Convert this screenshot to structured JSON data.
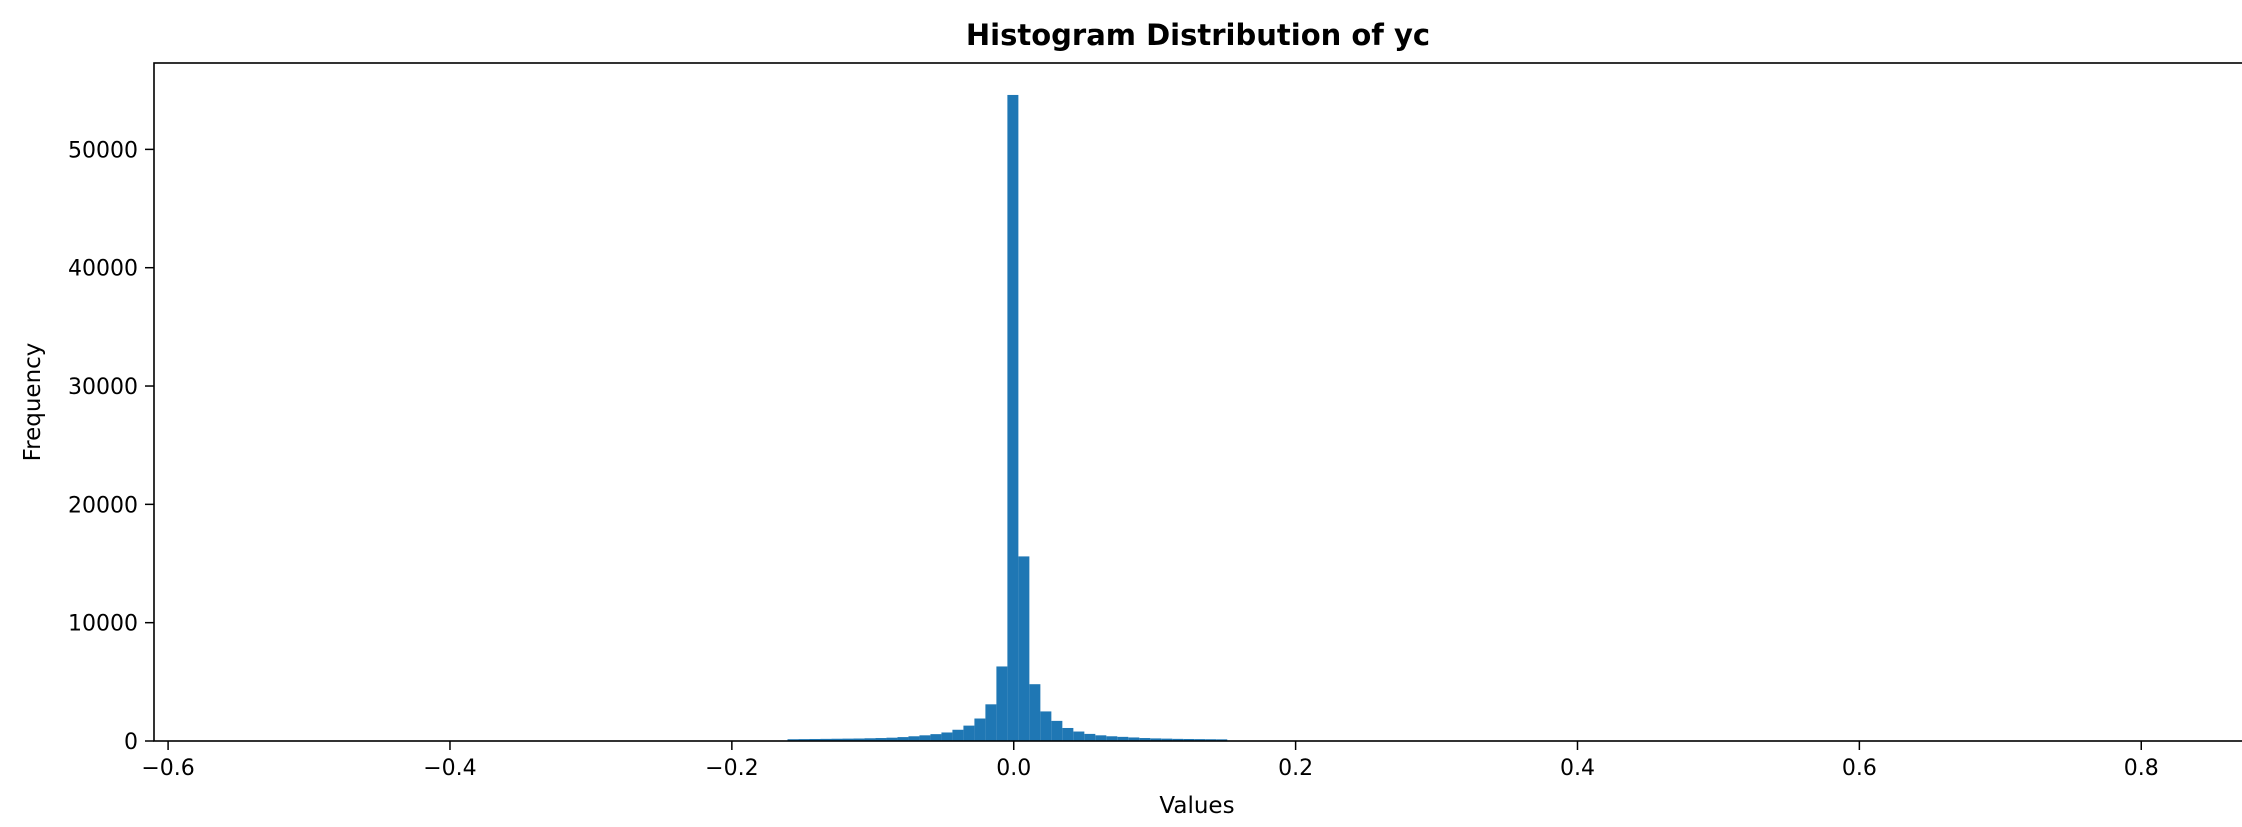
{
  "chart_data": {
    "type": "bar",
    "title": "Histogram Distribution of yc",
    "xlabel": "Values",
    "ylabel": "Frequency",
    "xlim": [
      -0.61,
      0.88
    ],
    "ylim": [
      0,
      57300
    ],
    "x_ticks": [
      -0.6,
      -0.4,
      -0.2,
      0.0,
      0.2,
      0.4,
      0.6,
      0.8
    ],
    "x_tick_labels": [
      "−0.6",
      "−0.4",
      "−0.2",
      "0.0",
      "0.2",
      "0.4",
      "0.6",
      "0.8"
    ],
    "y_ticks": [
      0,
      10000,
      20000,
      30000,
      40000,
      50000
    ],
    "y_tick_labels": [
      "0",
      "10000",
      "20000",
      "30000",
      "40000",
      "50000"
    ],
    "bin_width": 0.0078,
    "bins": [
      {
        "x": -0.1605,
        "count": 150
      },
      {
        "x": -0.1527,
        "count": 160
      },
      {
        "x": -0.1449,
        "count": 170
      },
      {
        "x": -0.1371,
        "count": 180
      },
      {
        "x": -0.1293,
        "count": 190
      },
      {
        "x": -0.1215,
        "count": 200
      },
      {
        "x": -0.1137,
        "count": 210
      },
      {
        "x": -0.1059,
        "count": 230
      },
      {
        "x": -0.0981,
        "count": 250
      },
      {
        "x": -0.0903,
        "count": 280
      },
      {
        "x": -0.0825,
        "count": 330
      },
      {
        "x": -0.0747,
        "count": 400
      },
      {
        "x": -0.0669,
        "count": 480
      },
      {
        "x": -0.0591,
        "count": 580
      },
      {
        "x": -0.0513,
        "count": 720
      },
      {
        "x": -0.0435,
        "count": 950
      },
      {
        "x": -0.0357,
        "count": 1300
      },
      {
        "x": -0.0279,
        "count": 1900
      },
      {
        "x": -0.0201,
        "count": 3100
      },
      {
        "x": -0.0123,
        "count": 6300
      },
      {
        "x": -0.0045,
        "count": 54600
      },
      {
        "x": 0.0033,
        "count": 15600
      },
      {
        "x": 0.0111,
        "count": 4800
      },
      {
        "x": 0.0189,
        "count": 2500
      },
      {
        "x": 0.0267,
        "count": 1700
      },
      {
        "x": 0.0345,
        "count": 1100
      },
      {
        "x": 0.0423,
        "count": 800
      },
      {
        "x": 0.0501,
        "count": 600
      },
      {
        "x": 0.0579,
        "count": 480
      },
      {
        "x": 0.0657,
        "count": 400
      },
      {
        "x": 0.0735,
        "count": 350
      },
      {
        "x": 0.0813,
        "count": 300
      },
      {
        "x": 0.0891,
        "count": 250
      },
      {
        "x": 0.0969,
        "count": 220
      },
      {
        "x": 0.1047,
        "count": 200
      },
      {
        "x": 0.1125,
        "count": 180
      },
      {
        "x": 0.1203,
        "count": 170
      },
      {
        "x": 0.1281,
        "count": 160
      },
      {
        "x": 0.1359,
        "count": 150
      },
      {
        "x": 0.1437,
        "count": 140
      }
    ],
    "bar_color": "#1f77b4",
    "grid": false,
    "legend": "none"
  }
}
